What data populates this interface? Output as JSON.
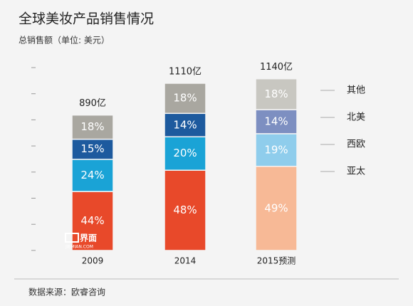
{
  "chart_data": {
    "type": "stacked_bar",
    "title": "全球美妆产品销售情况",
    "subtitle": "总销售额（单位: 美元）",
    "source": "数据来源：欧睿咨询",
    "annotations": [
      "界面",
      "JIEMIAN.COM"
    ],
    "categories": [
      "2009",
      "2014",
      "2015预测"
    ],
    "totals": {
      "values": [
        890,
        1110,
        1140
      ],
      "value_labels": [
        "890亿",
        "1110亿",
        "1140亿"
      ]
    },
    "series": [
      {
        "name": "亚太",
        "colors": [
          "#e8492a",
          "#e8492a",
          "#f7b996"
        ],
        "values": [
          44,
          48,
          49
        ],
        "value_labels": [
          "44%",
          "48%",
          "49%"
        ]
      },
      {
        "name": "西欧",
        "colors": [
          "#1aa3d6",
          "#1aa3d6",
          "#8fcdec"
        ],
        "values": [
          24,
          20,
          19
        ],
        "value_labels": [
          "24%",
          "20%",
          "19%"
        ]
      },
      {
        "name": "北美",
        "colors": [
          "#1d5a9e",
          "#1d5a9e",
          "#7d8fc1"
        ],
        "values": [
          15,
          14,
          14
        ],
        "value_labels": [
          "15%",
          "14%",
          "14%"
        ]
      },
      {
        "name": "其他",
        "colors": [
          "#a9a7a0",
          "#a9a7a0",
          "#c8c7c1"
        ],
        "values": [
          18,
          18,
          18
        ],
        "value_labels": [
          "18%",
          "18%",
          "18%"
        ]
      }
    ]
  }
}
